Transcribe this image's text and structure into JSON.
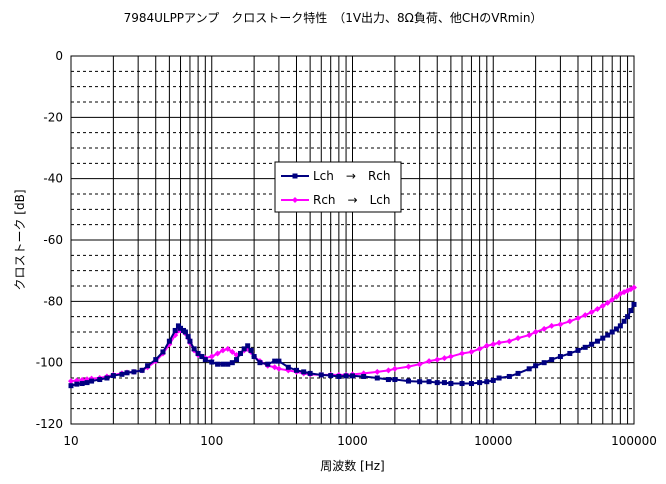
{
  "chart_data": {
    "type": "line",
    "title": "7984ULPPアンプ　クロストーク特性　（1V出力、8Ω負荷、他CHのVRmin）",
    "xlabel": "周波数 [Hz]",
    "ylabel": "クロストーク [dB]",
    "xscale": "log",
    "xlim": [
      10,
      100000
    ],
    "ylim": [
      -120,
      0
    ],
    "x_ticks": [
      "10",
      "100",
      "1000",
      "10000",
      "100000"
    ],
    "y_ticks": [
      "0",
      "-20",
      "-40",
      "-60",
      "-80",
      "-100",
      "-120"
    ],
    "grid": true,
    "legend_position": "center",
    "series": [
      {
        "name": "Lch　→　Rch",
        "color": "#000080",
        "marker": "square",
        "x": [
          10,
          11,
          12,
          13,
          14,
          16,
          18,
          20,
          23,
          25,
          28,
          32,
          35,
          40,
          45,
          50,
          55,
          58,
          60,
          63,
          65,
          68,
          70,
          75,
          80,
          85,
          90,
          100,
          110,
          120,
          130,
          140,
          150,
          160,
          170,
          180,
          190,
          200,
          220,
          250,
          280,
          300,
          350,
          400,
          450,
          500,
          600,
          700,
          800,
          900,
          1000,
          1200,
          1500,
          1800,
          2000,
          2500,
          3000,
          3500,
          4000,
          4500,
          5000,
          6000,
          7000,
          8000,
          9000,
          10000,
          11000,
          13000,
          15000,
          18000,
          20000,
          23000,
          26000,
          30000,
          35000,
          40000,
          45000,
          50000,
          55000,
          60000,
          65000,
          70000,
          75000,
          80000,
          85000,
          90000,
          95000,
          100000
        ],
        "y": [
          -107.5,
          -107,
          -106.8,
          -106.5,
          -106,
          -105.5,
          -105,
          -104.2,
          -103.8,
          -103.3,
          -103,
          -102.5,
          -101,
          -99,
          -96.5,
          -93,
          -89.5,
          -88,
          -88.8,
          -89.5,
          -90,
          -91.5,
          -93,
          -95.5,
          -97,
          -98,
          -99,
          -99.8,
          -100.5,
          -100.5,
          -100.5,
          -100,
          -99,
          -97,
          -95.5,
          -94.5,
          -96,
          -98,
          -100,
          -100.5,
          -99.5,
          -99.5,
          -101.5,
          -102.5,
          -103,
          -103.5,
          -104,
          -104.2,
          -104.5,
          -104.3,
          -104.3,
          -104.5,
          -105,
          -105.5,
          -105.5,
          -106,
          -106.2,
          -106.2,
          -106.5,
          -106.5,
          -106.8,
          -106.8,
          -106.8,
          -106.5,
          -106.2,
          -105.8,
          -105,
          -104.5,
          -103.5,
          -102,
          -101,
          -100,
          -99,
          -98,
          -97,
          -96,
          -95,
          -94,
          -93,
          -92,
          -91,
          -90,
          -89,
          -88,
          -86.5,
          -85,
          -83,
          -81
        ]
      },
      {
        "name": "Rch　→　Lch",
        "color": "#ff00ff",
        "marker": "diamond",
        "x": [
          10,
          11,
          12,
          13,
          14,
          16,
          18,
          20,
          23,
          25,
          28,
          32,
          35,
          40,
          45,
          50,
          55,
          58,
          60,
          63,
          65,
          68,
          70,
          75,
          80,
          85,
          90,
          100,
          110,
          120,
          130,
          140,
          150,
          160,
          170,
          180,
          190,
          200,
          220,
          250,
          280,
          300,
          350,
          400,
          450,
          500,
          600,
          700,
          800,
          900,
          1000,
          1200,
          1500,
          1800,
          2000,
          2500,
          3000,
          3500,
          4000,
          4500,
          5000,
          6000,
          7000,
          8000,
          9000,
          10000,
          11000,
          13000,
          15000,
          18000,
          20000,
          23000,
          26000,
          30000,
          35000,
          40000,
          45000,
          50000,
          55000,
          60000,
          65000,
          70000,
          75000,
          80000,
          85000,
          90000,
          95000,
          100000
        ],
        "y": [
          -106,
          -105.8,
          -105.6,
          -105.4,
          -105.2,
          -105,
          -104.5,
          -104,
          -103.5,
          -103.2,
          -103,
          -102.5,
          -101.5,
          -99.5,
          -97,
          -94,
          -91,
          -89.5,
          -89.5,
          -89.8,
          -90.5,
          -92,
          -93.5,
          -96,
          -97.5,
          -98,
          -98.5,
          -98,
          -97,
          -96,
          -95.5,
          -96.5,
          -97.5,
          -97,
          -96,
          -95.5,
          -96.5,
          -98,
          -99.5,
          -101,
          -101.5,
          -102,
          -102.5,
          -103,
          -103.5,
          -103.8,
          -104,
          -104,
          -104,
          -104,
          -103.8,
          -103.5,
          -103,
          -102.5,
          -102,
          -101.3,
          -100.5,
          -99.5,
          -99,
          -98.5,
          -98,
          -97,
          -96.5,
          -95.5,
          -94.5,
          -94,
          -93.5,
          -93,
          -92,
          -91,
          -90,
          -89,
          -88,
          -87.5,
          -86.5,
          -85.5,
          -84.5,
          -83.5,
          -82.5,
          -81.5,
          -80.5,
          -79.5,
          -78.5,
          -77.5,
          -77,
          -76.5,
          -76,
          -75.5
        ]
      }
    ]
  }
}
